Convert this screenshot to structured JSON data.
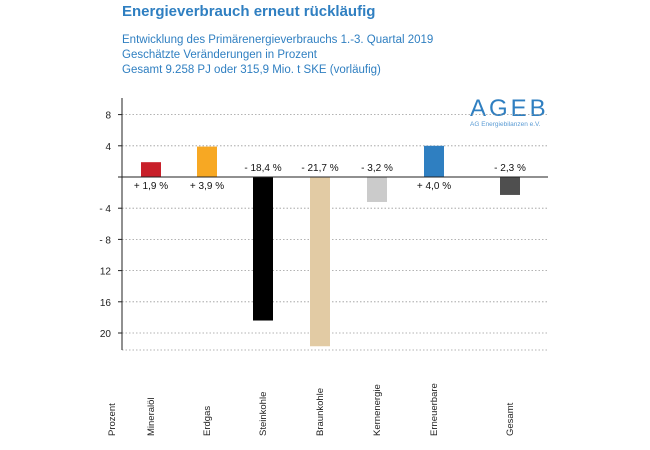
{
  "header": {
    "title": "Energieverbrauch erneut rückläufig",
    "subtitle_1": "Entwicklung des Primärenergieverbrauchs 1.-3. Quartal 2019",
    "subtitle_2": "Geschätzte Veränderungen in Prozent",
    "subtitle_3": "Gesamt 9.258 PJ oder 315,9 Mio. t SKE (vorläufig)"
  },
  "logo": {
    "name": "AGEB",
    "tagline": "AG Energiebilanzen e.V."
  },
  "colors": {
    "accent": "#2f7fc1"
  },
  "chart_data": {
    "type": "bar",
    "title": "Energieverbrauch erneut rückläufig",
    "xlabel": "",
    "ylabel": "Prozent",
    "ylim": [
      -22,
      10
    ],
    "y_ticks": [
      8,
      4,
      0,
      -4,
      -8,
      -12,
      -16,
      -20
    ],
    "y_tick_labels": [
      "8",
      "4",
      "",
      "- 4",
      "- 8",
      "12",
      "16",
      "20"
    ],
    "grid": "dotted horizontal",
    "categories": [
      "Mineralöl",
      "Erdgas",
      "Steinkohle",
      "Braunkohle",
      "Kernenergie",
      "Erneuerbare",
      "Gesamt"
    ],
    "values": [
      1.9,
      3.9,
      -18.4,
      -21.7,
      -3.2,
      4.0,
      -2.3
    ],
    "value_labels": [
      "+ 1,9 %",
      "+ 3,9 %",
      "- 18,4 %",
      "- 21,7 %",
      "- 3,2 %",
      "+ 4,0 %",
      "- 2,3 %"
    ],
    "bar_colors": [
      "#c8202a",
      "#f7a823",
      "#000000",
      "#e2cba4",
      "#cbcbcb",
      "#2f7fc1",
      "#4f4f4f"
    ]
  }
}
